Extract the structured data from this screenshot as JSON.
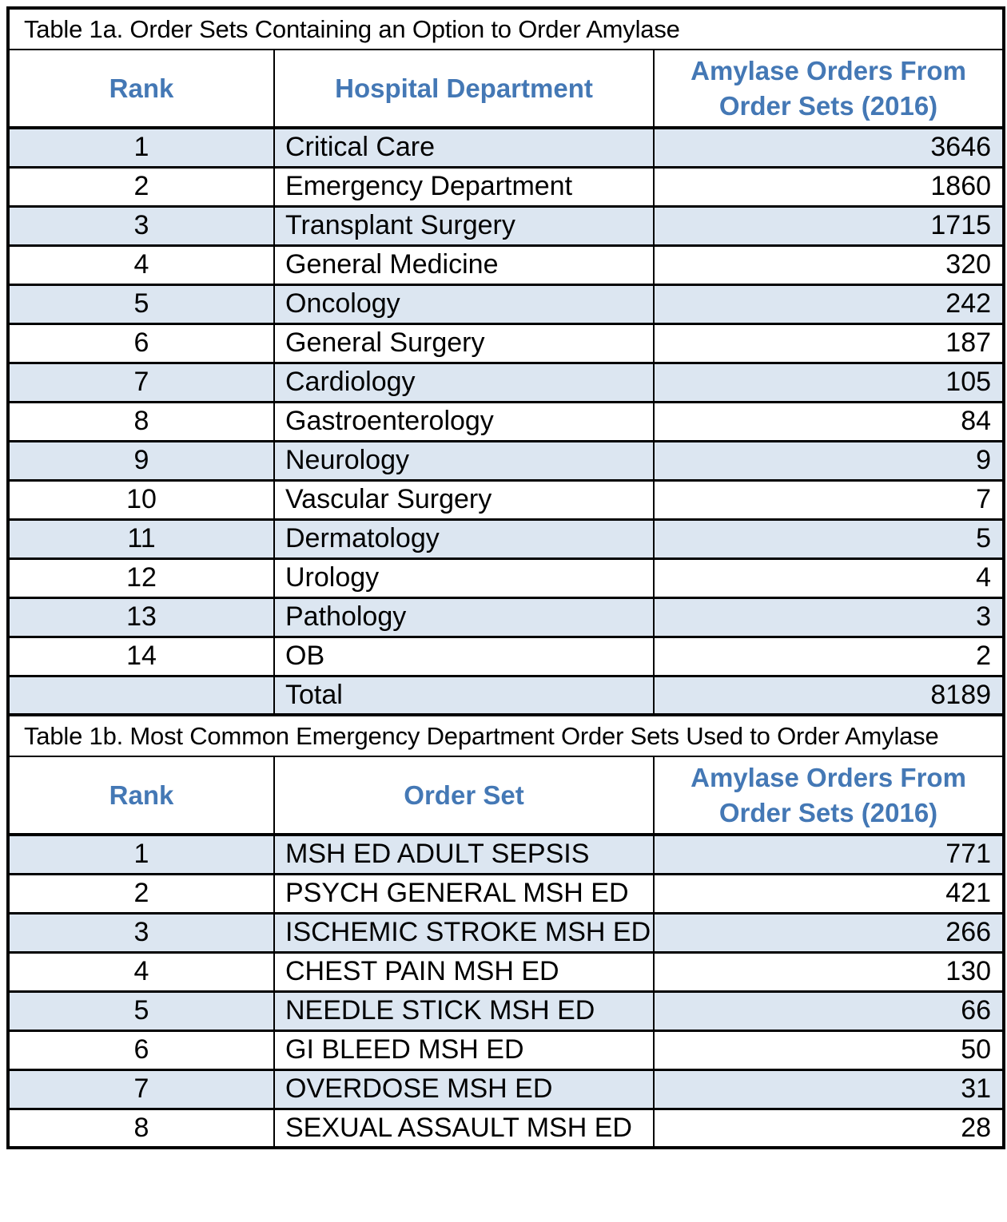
{
  "style": {
    "header_text_color": "#4478B5",
    "band_color": "#DCE6F1",
    "border_color": "#000000"
  },
  "table_1a": {
    "title": "Table 1a. Order Sets Containing an Option to Order Amylase",
    "columns": [
      "Rank",
      "Hospital Department",
      "Amylase Orders From Order Sets (2016)"
    ],
    "rows": [
      {
        "rank": "1",
        "label": "Critical Care",
        "value": "3646"
      },
      {
        "rank": "2",
        "label": "Emergency Department",
        "value": "1860"
      },
      {
        "rank": "3",
        "label": "Transplant Surgery",
        "value": "1715"
      },
      {
        "rank": "4",
        "label": "General Medicine",
        "value": "320"
      },
      {
        "rank": "5",
        "label": "Oncology",
        "value": "242"
      },
      {
        "rank": "6",
        "label": "General Surgery",
        "value": "187"
      },
      {
        "rank": "7",
        "label": "Cardiology",
        "value": "105"
      },
      {
        "rank": "8",
        "label": "Gastroenterology",
        "value": "84"
      },
      {
        "rank": "9",
        "label": "Neurology",
        "value": "9"
      },
      {
        "rank": "10",
        "label": "Vascular Surgery",
        "value": "7"
      },
      {
        "rank": "11",
        "label": "Dermatology",
        "value": "5"
      },
      {
        "rank": "12",
        "label": "Urology",
        "value": "4"
      },
      {
        "rank": "13",
        "label": "Pathology",
        "value": "3"
      },
      {
        "rank": "14",
        "label": "OB",
        "value": "2"
      },
      {
        "rank": "",
        "label": "Total",
        "value": "8189"
      }
    ]
  },
  "table_1b": {
    "title": "Table 1b. Most Common Emergency Department Order Sets Used to Order Amylase",
    "columns": [
      "Rank",
      "Order Set",
      "Amylase Orders From Order Sets (2016)"
    ],
    "rows": [
      {
        "rank": "1",
        "label": "MSH ED ADULT SEPSIS",
        "value": "771"
      },
      {
        "rank": "2",
        "label": "PSYCH GENERAL MSH ED",
        "value": "421"
      },
      {
        "rank": "3",
        "label": "ISCHEMIC STROKE MSH ED",
        "value": "266"
      },
      {
        "rank": "4",
        "label": "CHEST PAIN MSH ED",
        "value": "130"
      },
      {
        "rank": "5",
        "label": "NEEDLE STICK MSH ED",
        "value": "66"
      },
      {
        "rank": "6",
        "label": "GI BLEED MSH ED",
        "value": "50"
      },
      {
        "rank": "7",
        "label": "OVERDOSE MSH ED",
        "value": "31"
      },
      {
        "rank": "8",
        "label": "SEXUAL ASSAULT MSH ED",
        "value": "28"
      }
    ]
  }
}
